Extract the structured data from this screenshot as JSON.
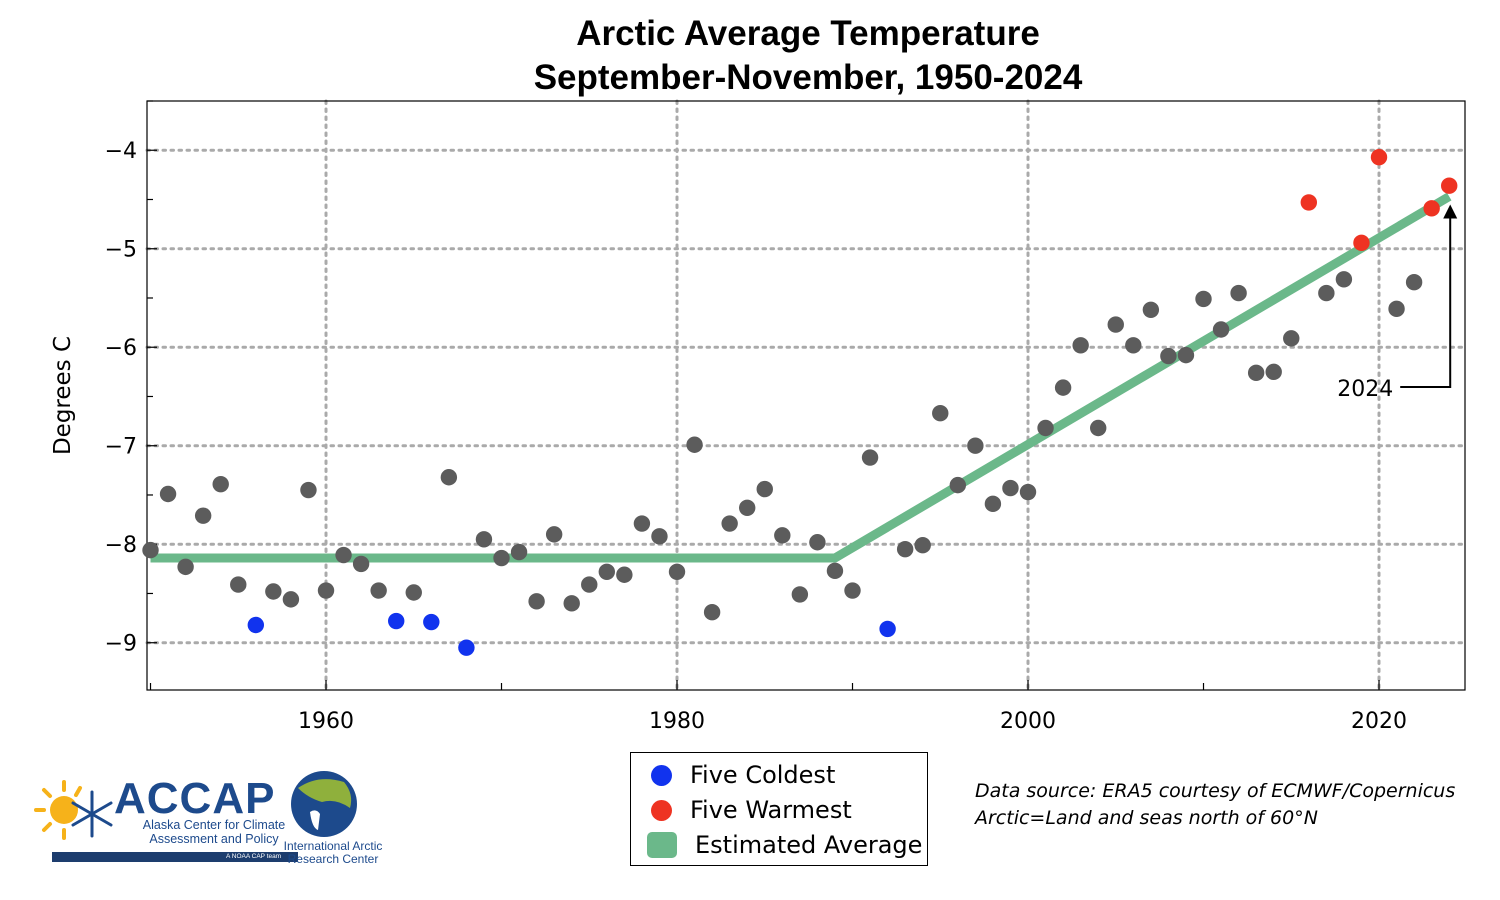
{
  "title": {
    "line1": "Arctic Average Temperature",
    "line2": "September-November, 1950-2024"
  },
  "legend": {
    "items": [
      {
        "label": "Five Coldest",
        "color": "#1133ee",
        "kind": "dot"
      },
      {
        "label": "Five Warmest",
        "color": "#ee3322",
        "kind": "dot"
      },
      {
        "label": "Estimated Average",
        "color": "#6bb88a",
        "kind": "rect"
      }
    ]
  },
  "source_note": {
    "line1": "Data source: ERA5 courtesy of ECMWF/Copernicus",
    "line2": "Arctic=Land and seas north of 60°N"
  },
  "logos": {
    "accap_name": "ACCAP",
    "accap_subtitle": "Alaska Center for Climate Assessment and Policy",
    "accap_tagline": "A NOAA CAP team",
    "iarc_name": "International Arctic Research Center"
  },
  "chart_data": {
    "type": "scatter",
    "title": "Arctic Average Temperature September-November, 1950-2024",
    "xlabel": "",
    "ylabel": "Degrees C",
    "xlim": [
      1949.8,
      2024.9
    ],
    "ylim": [
      -9.48,
      -3.5
    ],
    "xticks": [
      1960,
      1980,
      2000,
      2020
    ],
    "yticks": [
      -9,
      -8,
      -7,
      -6,
      -5,
      -4
    ],
    "grid": true,
    "legend_position": "bottom-center",
    "colors": {
      "normal": "#5c5c5c",
      "coldest": "#1133ee",
      "warmest": "#ee3322",
      "trend": "#6bb88a",
      "grid": "#aaaaaa"
    },
    "series": [
      {
        "name": "Five Coldest",
        "x": [
          1956,
          1964,
          1966,
          1968,
          1992
        ],
        "y": [
          -8.82,
          -8.78,
          -8.79,
          -9.05,
          -8.86
        ]
      },
      {
        "name": "Five Warmest",
        "x": [
          2016,
          2019,
          2020,
          2023,
          2024
        ],
        "y": [
          -4.53,
          -4.94,
          -4.07,
          -4.59,
          -4.36
        ]
      },
      {
        "name": "",
        "x": [
          1950,
          1951,
          1952,
          1953,
          1954,
          1955,
          1957,
          1958,
          1959,
          1960,
          1961,
          1962,
          1963,
          1965,
          1967,
          1969,
          1970,
          1971,
          1972,
          1973,
          1974,
          1975,
          1976,
          1977,
          1978,
          1979,
          1980,
          1981,
          1982,
          1983,
          1984,
          1985,
          1986,
          1987,
          1988,
          1989,
          1990,
          1991,
          1993,
          1994,
          1995,
          1996,
          1997,
          1998,
          1999,
          2000,
          2001,
          2002,
          2003,
          2004,
          2005,
          2006,
          2007,
          2008,
          2009,
          2010,
          2011,
          2012,
          2013,
          2014,
          2015,
          2017,
          2018,
          2021,
          2022
        ],
        "y": [
          -8.06,
          -7.49,
          -8.23,
          -7.71,
          -7.39,
          -8.41,
          -8.48,
          -8.56,
          -7.45,
          -8.47,
          -8.11,
          -8.2,
          -8.47,
          -8.49,
          -7.32,
          -7.95,
          -8.14,
          -8.08,
          -8.58,
          -7.9,
          -8.6,
          -8.41,
          -8.28,
          -8.31,
          -7.79,
          -7.92,
          -8.28,
          -6.99,
          -8.69,
          -7.79,
          -7.63,
          -7.44,
          -7.91,
          -8.51,
          -7.98,
          -8.27,
          -8.47,
          -7.12,
          -8.05,
          -8.01,
          -6.67,
          -7.4,
          -7.0,
          -7.59,
          -7.43,
          -7.47,
          -6.82,
          -6.41,
          -5.98,
          -6.82,
          -5.77,
          -5.98,
          -5.62,
          -6.09,
          -6.08,
          -5.51,
          -5.82,
          -5.45,
          -6.26,
          -6.25,
          -5.91,
          -5.45,
          -5.31,
          -5.61,
          -5.34
        ]
      },
      {
        "name": "Estimated Average",
        "type": "line",
        "x": [
          1950,
          1989,
          2024
        ],
        "y": [
          -8.14,
          -8.14,
          -4.47
        ]
      }
    ],
    "annotations": [
      {
        "text": "2024",
        "target_x": 2024,
        "target_y": -4.47
      }
    ]
  }
}
